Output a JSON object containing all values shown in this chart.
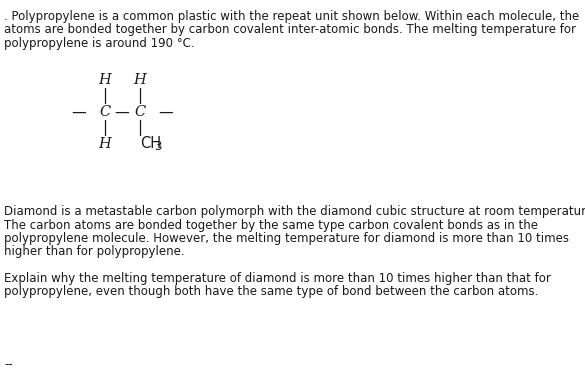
{
  "background_color": "#ffffff",
  "fig_width": 5.85,
  "fig_height": 3.82,
  "dpi": 100,
  "paragraph1_line1": ". Polypropylene is a common plastic with the repeat unit shown below. Within each molecule, the",
  "paragraph1_line2": "atoms are bonded together by carbon covalent inter-atomic bonds. The melting temperature for",
  "paragraph1_line3": "polypropylene is around 190 °C.",
  "paragraph2_line1": "Diamond is a metastable carbon polymorph with the diamond cubic structure at room temperature.",
  "paragraph2_line2": "The carbon atoms are bonded together by the same type carbon covalent bonds as in the",
  "paragraph2_line3": "polypropylene molecule. However, the melting temperature for diamond is more than 10 times",
  "paragraph2_line4": "higher than for polypropylene.",
  "paragraph3_line1": "Explain why the melting temperature of diamond is more than 10 times higher than that for",
  "paragraph3_line2": "polypropylene, even though both have the same type of bond between the carbon atoms.",
  "footnote": "--",
  "text_color": "#1a1a1a",
  "font_size_body": 8.5,
  "structure_font_size": 10.5,
  "ch3_font_size": 10.5
}
